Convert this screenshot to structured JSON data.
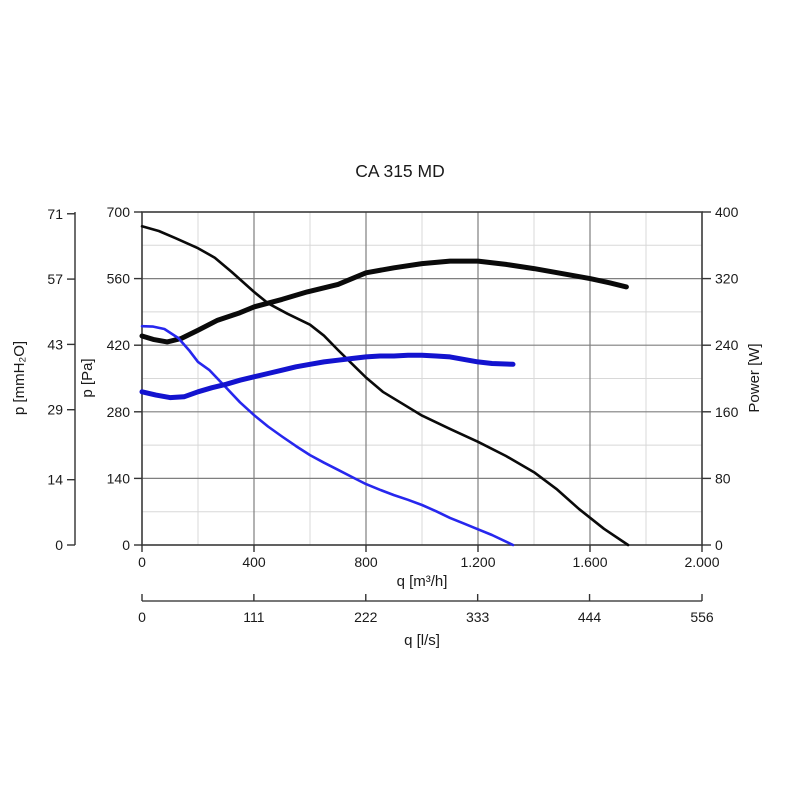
{
  "title": "CA 315 MD",
  "chart_data": {
    "type": "line",
    "title": "CA 315 MD",
    "x_axes": {
      "m3h": {
        "label": "q [m³/h]",
        "range": [
          0,
          2000
        ],
        "tick_values": [
          0,
          400,
          800,
          1200,
          1600,
          2000
        ],
        "tick_labels": [
          "0",
          "400",
          "800",
          "1.200",
          "1.600",
          "2.000"
        ]
      },
      "ls": {
        "label": "q [l/s]",
        "range": [
          0,
          556
        ],
        "tick_values": [
          0,
          111,
          222,
          333,
          444,
          556
        ],
        "tick_labels": [
          "0",
          "111",
          "222",
          "333",
          "444",
          "556"
        ]
      }
    },
    "y_axes": {
      "mmh2o": {
        "label": "p [mmH₂O]",
        "range": [
          0,
          71.4
        ],
        "tick_values": [
          0,
          14,
          29,
          43,
          57,
          71
        ],
        "tick_labels": [
          "0",
          "14",
          "29",
          "43",
          "57",
          "71"
        ]
      },
      "pa": {
        "label": "p [Pa]",
        "range": [
          0,
          700
        ],
        "tick_values": [
          0,
          140,
          280,
          420,
          560,
          700
        ],
        "tick_labels": [
          "0",
          "140",
          "280",
          "420",
          "560",
          "700"
        ]
      },
      "power": {
        "label": "Power [W]",
        "range": [
          0,
          400
        ],
        "tick_values": [
          0,
          80,
          160,
          240,
          320,
          400
        ],
        "tick_labels": [
          "0",
          "80",
          "160",
          "240",
          "320",
          "400"
        ]
      }
    },
    "grid": {
      "x_major": [
        400,
        800,
        1200,
        1600
      ],
      "x_minor": [
        200,
        600,
        1000,
        1400,
        1800
      ],
      "pa_major": [
        140,
        280,
        420,
        560
      ],
      "pa_minor": [
        70,
        210,
        350,
        490,
        630
      ],
      "major_color": "#7f7f7f",
      "minor_color": "#d8d8d8",
      "frame_color": "#3a3a3a"
    },
    "series": [
      {
        "name": "pressure-black",
        "axis": "pa",
        "color": "#0a0a0a",
        "width": 2.6,
        "points": [
          [
            0,
            670
          ],
          [
            60,
            660
          ],
          [
            120,
            645
          ],
          [
            200,
            624
          ],
          [
            260,
            604
          ],
          [
            320,
            574
          ],
          [
            400,
            532
          ],
          [
            450,
            508
          ],
          [
            520,
            486
          ],
          [
            600,
            463
          ],
          [
            650,
            440
          ],
          [
            700,
            410
          ],
          [
            760,
            375
          ],
          [
            800,
            352
          ],
          [
            860,
            322
          ],
          [
            930,
            297
          ],
          [
            1000,
            272
          ],
          [
            1100,
            244
          ],
          [
            1200,
            217
          ],
          [
            1300,
            187
          ],
          [
            1400,
            153
          ],
          [
            1480,
            118
          ],
          [
            1560,
            76
          ],
          [
            1650,
            34
          ],
          [
            1736,
            0
          ]
        ]
      },
      {
        "name": "power-black",
        "axis": "power",
        "color": "#0a0a0a",
        "width": 5,
        "points": [
          [
            0,
            251
          ],
          [
            40,
            247
          ],
          [
            90,
            244
          ],
          [
            140,
            248
          ],
          [
            200,
            258
          ],
          [
            270,
            270
          ],
          [
            350,
            279
          ],
          [
            400,
            286
          ],
          [
            500,
            295
          ],
          [
            590,
            304
          ],
          [
            700,
            313
          ],
          [
            800,
            327
          ],
          [
            900,
            333
          ],
          [
            1000,
            338
          ],
          [
            1100,
            341
          ],
          [
            1200,
            341
          ],
          [
            1300,
            337
          ],
          [
            1400,
            332
          ],
          [
            1500,
            326
          ],
          [
            1600,
            320
          ],
          [
            1670,
            315
          ],
          [
            1730,
            310
          ]
        ]
      },
      {
        "name": "pressure-blue",
        "axis": "pa",
        "color": "#2727ee",
        "width": 2.6,
        "points": [
          [
            0,
            460
          ],
          [
            40,
            459
          ],
          [
            80,
            454
          ],
          [
            130,
            435
          ],
          [
            170,
            408
          ],
          [
            200,
            385
          ],
          [
            240,
            368
          ],
          [
            300,
            331
          ],
          [
            350,
            300
          ],
          [
            400,
            273
          ],
          [
            450,
            249
          ],
          [
            500,
            228
          ],
          [
            550,
            208
          ],
          [
            600,
            189
          ],
          [
            650,
            173
          ],
          [
            700,
            158
          ],
          [
            750,
            143
          ],
          [
            800,
            128
          ],
          [
            850,
            116
          ],
          [
            900,
            105
          ],
          [
            950,
            95
          ],
          [
            1000,
            84
          ],
          [
            1050,
            71
          ],
          [
            1100,
            57
          ],
          [
            1150,
            45
          ],
          [
            1200,
            33
          ],
          [
            1250,
            21
          ],
          [
            1325,
            0
          ]
        ]
      },
      {
        "name": "power-blue",
        "axis": "power",
        "color": "#1313cf",
        "width": 5,
        "points": [
          [
            0,
            184
          ],
          [
            50,
            180
          ],
          [
            100,
            177
          ],
          [
            150,
            178
          ],
          [
            200,
            184
          ],
          [
            250,
            189
          ],
          [
            300,
            193
          ],
          [
            350,
            198
          ],
          [
            400,
            202
          ],
          [
            450,
            206
          ],
          [
            500,
            210
          ],
          [
            550,
            214
          ],
          [
            600,
            217
          ],
          [
            650,
            220
          ],
          [
            700,
            222
          ],
          [
            750,
            224
          ],
          [
            800,
            226
          ],
          [
            850,
            227
          ],
          [
            900,
            227
          ],
          [
            950,
            228
          ],
          [
            1000,
            228
          ],
          [
            1050,
            227
          ],
          [
            1100,
            226
          ],
          [
            1150,
            223
          ],
          [
            1200,
            220
          ],
          [
            1250,
            218
          ],
          [
            1325,
            217
          ]
        ]
      }
    ],
    "legend": null
  }
}
